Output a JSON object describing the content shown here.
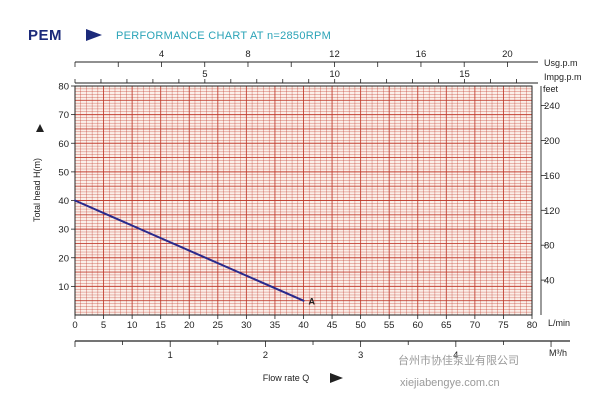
{
  "header": {
    "brand": "PEM",
    "title": "PERFORMANCE CHART AT n=2850RPM"
  },
  "watermark": {
    "line1": "台州市协佳泵业有限公司",
    "line2": "xiejiabengye.com.cn"
  },
  "colors": {
    "grid": "#c0392b",
    "grid_bg": "#fbefe9",
    "curve": "#2a2a8c",
    "brand": "#1c2a7a",
    "title": "#2aa3b7"
  },
  "chart_data": {
    "type": "line",
    "title": "PERFORMANCE CHART AT n=2850RPM",
    "xlabel": "Flow rate Q",
    "ylabel": "Total head H(m)",
    "xlim": [
      0,
      80
    ],
    "ylim": [
      0,
      80
    ],
    "x_unit": "L/min",
    "x_ticks": [
      0,
      5,
      10,
      15,
      20,
      25,
      30,
      35,
      40,
      45,
      50,
      55,
      60,
      65,
      70,
      75,
      80
    ],
    "y_ticks": [
      10,
      20,
      30,
      40,
      50,
      60,
      70,
      80
    ],
    "grid": true,
    "secondary_axes": {
      "usgpm": {
        "label": "Usg.p.m",
        "ticks": [
          4,
          8,
          12,
          16,
          20
        ],
        "lpm_per_unit": 3.785
      },
      "impgpm": {
        "label": "Impg.p.m",
        "ticks": [
          5,
          10,
          15
        ],
        "lpm_per_unit": 4.546
      },
      "feet": {
        "label": "feet",
        "ticks": [
          40,
          80,
          120,
          160,
          200,
          240
        ],
        "m_per_unit": 0.3048
      },
      "m3h": {
        "label": "M³/h",
        "ticks": [
          1,
          2,
          3,
          4
        ]
      }
    },
    "series": [
      {
        "name": "A",
        "x": [
          0,
          40
        ],
        "y": [
          40,
          5
        ]
      }
    ]
  }
}
